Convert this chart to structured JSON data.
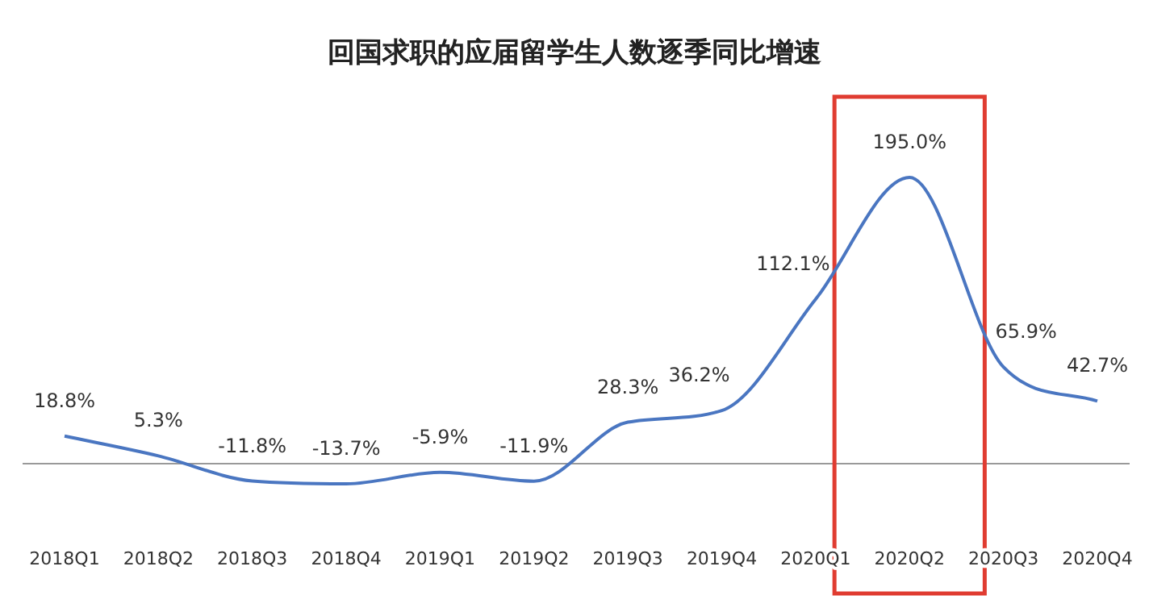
{
  "chart_data": {
    "type": "line",
    "title": "回国求职的应届留学生人数逐季同比增速",
    "categories": [
      "2018Q1",
      "2018Q2",
      "2018Q3",
      "2018Q4",
      "2019Q1",
      "2019Q2",
      "2019Q3",
      "2019Q4",
      "2020Q1",
      "2020Q2",
      "2020Q3",
      "2020Q4"
    ],
    "values": [
      18.8,
      5.3,
      -11.8,
      -13.7,
      -5.9,
      -11.9,
      28.3,
      36.2,
      112.1,
      195.0,
      65.9,
      42.7
    ],
    "value_labels": [
      "18.8%",
      "5.3%",
      "-11.8%",
      "-13.7%",
      "-5.9%",
      "-11.9%",
      "28.3%",
      "36.2%",
      "112.1%",
      "195.0%",
      "65.9%",
      "42.7%"
    ],
    "color": "#4a76c1",
    "marker": "none"
  }
}
